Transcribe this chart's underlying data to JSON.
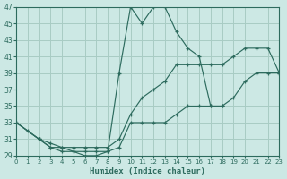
{
  "xlabel": "Humidex (Indice chaleur)",
  "bg_color": "#cce8e4",
  "grid_color": "#a8ccc4",
  "line_color": "#2d6b5e",
  "xlim": [
    0,
    23
  ],
  "ylim": [
    29,
    47
  ],
  "xticks": [
    0,
    1,
    2,
    3,
    4,
    5,
    6,
    7,
    8,
    9,
    10,
    11,
    12,
    13,
    14,
    15,
    16,
    17,
    18,
    19,
    20,
    21,
    22,
    23
  ],
  "yticks": [
    29,
    31,
    33,
    35,
    37,
    39,
    41,
    43,
    45,
    47
  ],
  "series1_x": [
    0,
    1,
    2,
    3,
    4,
    5,
    6,
    7,
    8,
    9,
    10,
    11,
    12,
    13,
    14,
    15,
    16,
    17,
    18
  ],
  "series1_y": [
    33,
    32,
    31,
    30.5,
    30,
    29.5,
    29,
    29,
    29.5,
    39,
    47,
    45,
    47,
    47,
    44,
    42,
    41,
    35,
    35
  ],
  "series2_x": [
    0,
    2,
    3,
    4,
    5,
    6,
    7,
    8,
    9,
    10,
    11,
    12,
    13,
    14,
    15,
    16,
    17,
    18,
    19,
    20,
    21,
    22,
    23
  ],
  "series2_y": [
    33,
    31,
    30,
    30,
    30,
    30,
    30,
    30,
    31,
    34,
    36,
    37,
    38,
    40,
    40,
    40,
    40,
    40,
    41,
    42,
    42,
    42,
    39
  ],
  "series3_x": [
    0,
    2,
    3,
    4,
    5,
    6,
    7,
    8,
    9,
    10,
    11,
    12,
    13,
    14,
    15,
    16,
    17,
    18,
    19,
    20,
    21,
    22,
    23
  ],
  "series3_y": [
    33,
    31,
    30,
    29.5,
    29.5,
    29.5,
    29.5,
    29.5,
    30,
    33,
    33,
    33,
    33,
    34,
    35,
    35,
    35,
    35,
    36,
    38,
    39,
    39,
    39
  ]
}
